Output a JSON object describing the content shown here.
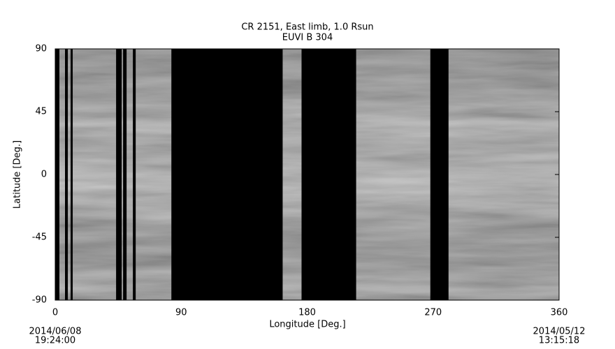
{
  "chart_data": {
    "type": "synoptic-map",
    "title": "CR 2151, East limb, 1.0 Rsun",
    "subtitle": "EUVI B 304",
    "x_label": "Longitude [Deg.]",
    "y_label": "Latitude [Deg.]",
    "xlim": [
      0,
      360
    ],
    "xticks": [
      0,
      90,
      180,
      270,
      360
    ],
    "ylim": [
      -90,
      90
    ],
    "yticks": [
      90,
      45,
      0,
      -45,
      -90
    ],
    "start_date": "2014/06/08",
    "start_time": "19:24:00",
    "end_date": "2014/05/12",
    "end_time": "13:15:18",
    "gap_color": "#000000",
    "data_gaps": [
      [
        0,
        3
      ],
      [
        7,
        9
      ],
      [
        11,
        12.5
      ],
      [
        43.5,
        47.5
      ],
      [
        48.5,
        51
      ],
      [
        55.5,
        57.5
      ],
      [
        83,
        162.5
      ],
      [
        176,
        215
      ],
      [
        268,
        281
      ]
    ]
  }
}
